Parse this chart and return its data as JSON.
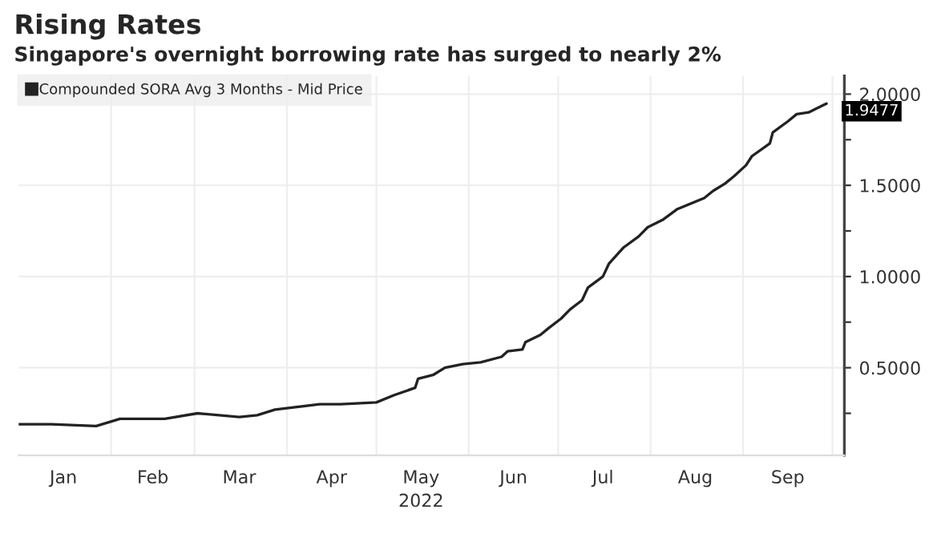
{
  "chart_data": {
    "type": "line",
    "title": "Rising Rates",
    "subtitle": "Singapore's overnight borrowing rate has surged to nearly 2%",
    "xlabel": "2022",
    "x": [
      "2022-01-01",
      "2022-01-12",
      "2022-01-27",
      "2022-02-04",
      "2022-02-19",
      "2022-03-02",
      "2022-03-16",
      "2022-03-22",
      "2022-03-28",
      "2022-04-12",
      "2022-04-19",
      "2022-05-01",
      "2022-05-07",
      "2022-05-14",
      "2022-05-15",
      "2022-05-20",
      "2022-05-24",
      "2022-05-30",
      "2022-06-05",
      "2022-06-12",
      "2022-06-14",
      "2022-06-19",
      "2022-06-20",
      "2022-06-25",
      "2022-06-28",
      "2022-07-02",
      "2022-07-05",
      "2022-07-09",
      "2022-07-11",
      "2022-07-16",
      "2022-07-18",
      "2022-07-23",
      "2022-07-28",
      "2022-07-31",
      "2022-08-05",
      "2022-08-10",
      "2022-08-19",
      "2022-08-22",
      "2022-08-26",
      "2022-08-29",
      "2022-09-02",
      "2022-09-04",
      "2022-09-10",
      "2022-09-11",
      "2022-09-16",
      "2022-09-19",
      "2022-09-23",
      "2022-09-28",
      "2022-09-29"
    ],
    "series": [
      {
        "name": "Compounded SORA Avg 3 Months - Mid Price",
        "color": "#222222",
        "values": [
          0.19,
          0.19,
          0.18,
          0.22,
          0.22,
          0.25,
          0.23,
          0.24,
          0.27,
          0.3,
          0.3,
          0.31,
          0.35,
          0.39,
          0.44,
          0.46,
          0.5,
          0.52,
          0.53,
          0.56,
          0.59,
          0.6,
          0.64,
          0.68,
          0.72,
          0.77,
          0.82,
          0.87,
          0.94,
          1.0,
          1.07,
          1.16,
          1.22,
          1.27,
          1.31,
          1.37,
          1.43,
          1.47,
          1.51,
          1.55,
          1.61,
          1.66,
          1.73,
          1.79,
          1.85,
          1.89,
          1.9,
          1.94,
          1.9477
        ]
      }
    ],
    "annotations": [
      {
        "text": "1.9477",
        "x": "2022-09-29",
        "y": 1.9477
      }
    ],
    "xlim": [
      "2022-01-01",
      "2022-10-05"
    ],
    "xticks": [
      {
        "value": "2022-01-16",
        "label": "Jan"
      },
      {
        "value": "2022-02-01",
        "label": null
      },
      {
        "value": "2022-02-15",
        "label": "Feb"
      },
      {
        "value": "2022-03-01",
        "label": null
      },
      {
        "value": "2022-03-16",
        "label": "Mar"
      },
      {
        "value": "2022-04-01",
        "label": null
      },
      {
        "value": "2022-04-16",
        "label": "Apr"
      },
      {
        "value": "2022-05-01",
        "label": null
      },
      {
        "value": "2022-05-16",
        "label": "May"
      },
      {
        "value": "2022-06-01",
        "label": null
      },
      {
        "value": "2022-06-16",
        "label": "Jun"
      },
      {
        "value": "2022-07-01",
        "label": null
      },
      {
        "value": "2022-07-16",
        "label": "Jul"
      },
      {
        "value": "2022-08-01",
        "label": null
      },
      {
        "value": "2022-08-16",
        "label": "Aug"
      },
      {
        "value": "2022-09-01",
        "label": null
      },
      {
        "value": "2022-09-16",
        "label": "Sep"
      },
      {
        "value": "2022-10-01",
        "label": null
      }
    ],
    "ylim": [
      0.02,
      2.1
    ],
    "yticks": [
      {
        "value": 0.25,
        "label": null
      },
      {
        "value": 0.5,
        "label": "0.5000"
      },
      {
        "value": 0.75,
        "label": null
      },
      {
        "value": 1.0,
        "label": "1.0000"
      },
      {
        "value": 1.25,
        "label": null
      },
      {
        "value": 1.5,
        "label": "1.5000"
      },
      {
        "value": 1.75,
        "label": null
      },
      {
        "value": 2.0,
        "label": "2.0000"
      }
    ],
    "grid": true,
    "legend": "top left"
  }
}
